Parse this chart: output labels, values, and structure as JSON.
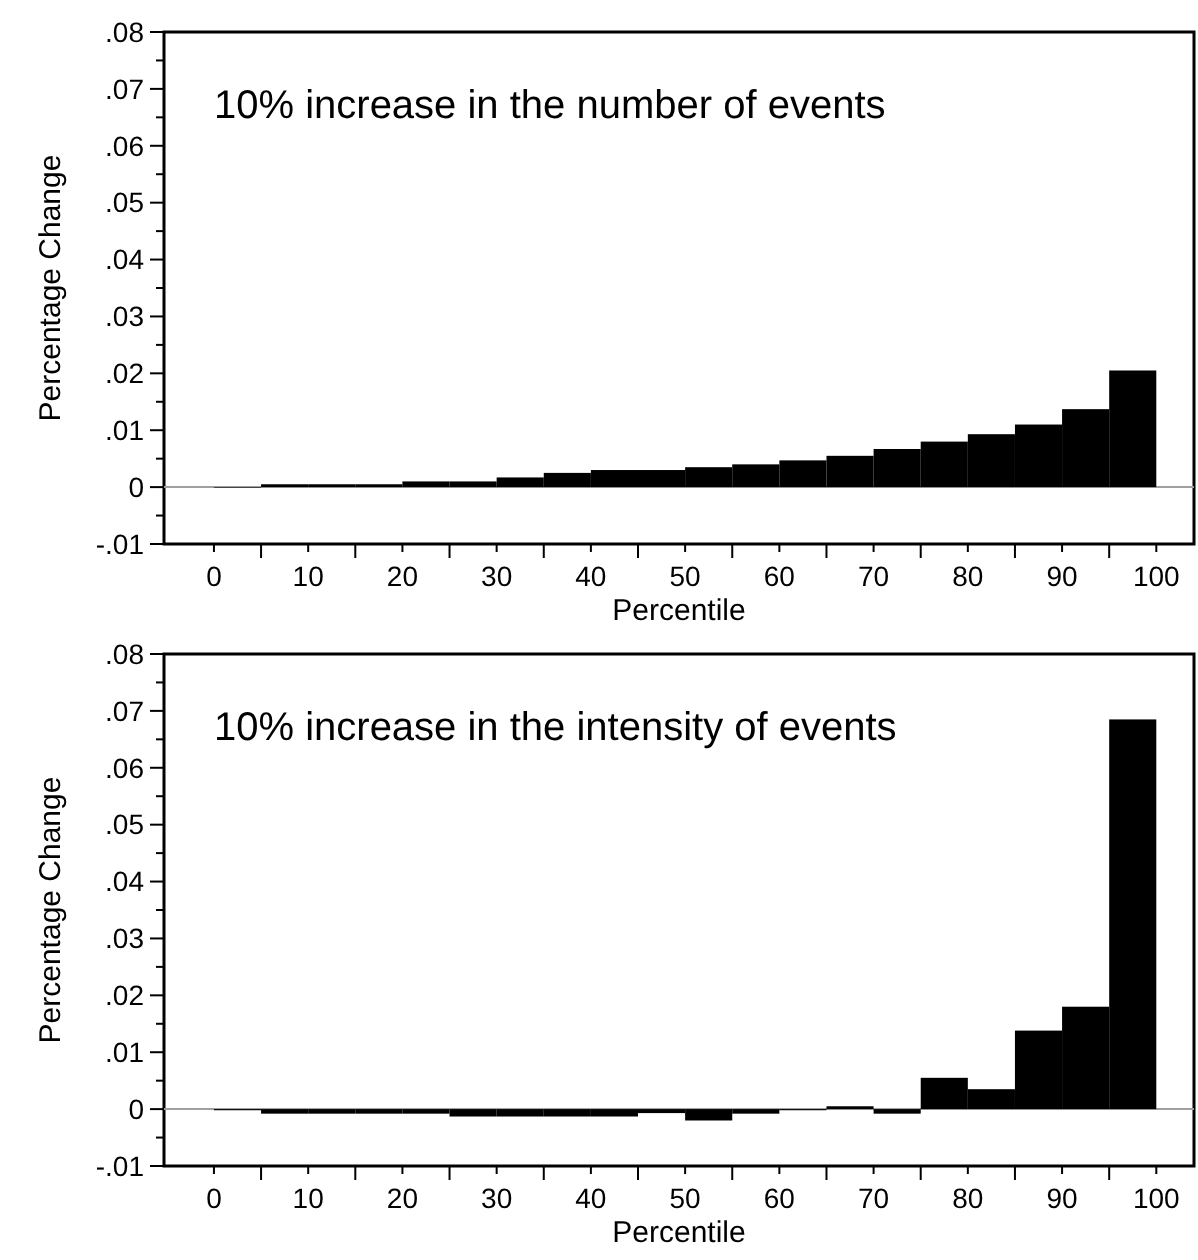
{
  "chart_data": [
    {
      "type": "histogram",
      "annotations": [
        "10% increase in the number of events"
      ],
      "xlabel": "Percentile",
      "ylabel": "Percentage Change",
      "color": "#000000",
      "bins": [
        0,
        5,
        10,
        15,
        20,
        25,
        30,
        35,
        40,
        45,
        50,
        55,
        60,
        65,
        70,
        75,
        80,
        85,
        90,
        95,
        100
      ],
      "values": [
        -0.0001,
        0.0005,
        0.0005,
        0.0005,
        0.001,
        0.001,
        0.0017,
        0.0025,
        0.003,
        0.003,
        0.0035,
        0.004,
        0.0047,
        0.0055,
        0.0067,
        0.008,
        0.0093,
        0.011,
        0.0137,
        0.0205
      ],
      "xlim": [
        -5.3,
        104
      ],
      "xticks": [
        0,
        {
          "value": 5,
          "label": null
        },
        10,
        {
          "value": 15,
          "label": null
        },
        20,
        {
          "value": 25,
          "label": null
        },
        30,
        {
          "value": 35,
          "label": null
        },
        40,
        {
          "value": 45,
          "label": null
        },
        50,
        {
          "value": 55,
          "label": null
        },
        60,
        {
          "value": 65,
          "label": null
        },
        70,
        {
          "value": 75,
          "label": null
        },
        80,
        {
          "value": 85,
          "label": null
        },
        90,
        {
          "value": 95,
          "label": null
        },
        100
      ],
      "ylim": [
        -0.01,
        0.08
      ],
      "yticks": [
        {
          "value": -0.01,
          "label": "-.01"
        },
        {
          "value": -0.005,
          "label": null
        },
        0,
        {
          "value": 0.005,
          "label": null
        },
        {
          "value": 0.01,
          "label": ".01"
        },
        {
          "value": 0.015,
          "label": null
        },
        {
          "value": 0.02,
          "label": ".02"
        },
        {
          "value": 0.025,
          "label": null
        },
        {
          "value": 0.03,
          "label": ".03"
        },
        {
          "value": 0.035,
          "label": null
        },
        {
          "value": 0.04,
          "label": ".04"
        },
        {
          "value": 0.045,
          "label": null
        },
        {
          "value": 0.05,
          "label": ".05"
        },
        {
          "value": 0.055,
          "label": null
        },
        {
          "value": 0.06,
          "label": ".06"
        },
        {
          "value": 0.065,
          "label": null
        },
        {
          "value": 0.07,
          "label": ".07"
        },
        {
          "value": 0.075,
          "label": null
        },
        {
          "value": 0.08,
          "label": ".08"
        }
      ],
      "ref_lines": [
        {
          "axis": "y",
          "value": 0,
          "color": "#a0a0a0"
        }
      ]
    },
    {
      "type": "histogram",
      "annotations": [
        "10% increase in the intensity of events"
      ],
      "xlabel": "Percentile",
      "ylabel": "Percentage Change",
      "color": "#000000",
      "bins": [
        0,
        5,
        10,
        15,
        20,
        25,
        30,
        35,
        40,
        45,
        50,
        55,
        60,
        65,
        70,
        75,
        80,
        85,
        90,
        95,
        100
      ],
      "values": [
        -0.0002,
        -0.0008,
        -0.0008,
        -0.0008,
        -0.0008,
        -0.0013,
        -0.0013,
        -0.0013,
        -0.0013,
        -0.0007,
        -0.002,
        -0.0008,
        -0.0002,
        0.0005,
        -0.0008,
        0.0055,
        0.0035,
        0.0138,
        0.018,
        0.0685
      ],
      "xlim": [
        -5.3,
        104
      ],
      "xticks": [
        0,
        {
          "value": 5,
          "label": null
        },
        10,
        {
          "value": 15,
          "label": null
        },
        20,
        {
          "value": 25,
          "label": null
        },
        30,
        {
          "value": 35,
          "label": null
        },
        40,
        {
          "value": 45,
          "label": null
        },
        50,
        {
          "value": 55,
          "label": null
        },
        60,
        {
          "value": 65,
          "label": null
        },
        70,
        {
          "value": 75,
          "label": null
        },
        80,
        {
          "value": 85,
          "label": null
        },
        90,
        {
          "value": 95,
          "label": null
        },
        100
      ],
      "ylim": [
        -0.01,
        0.08
      ],
      "yticks": [
        {
          "value": -0.01,
          "label": "-.01"
        },
        {
          "value": -0.005,
          "label": null
        },
        0,
        {
          "value": 0.005,
          "label": null
        },
        {
          "value": 0.01,
          "label": ".01"
        },
        {
          "value": 0.015,
          "label": null
        },
        {
          "value": 0.02,
          "label": ".02"
        },
        {
          "value": 0.025,
          "label": null
        },
        {
          "value": 0.03,
          "label": ".03"
        },
        {
          "value": 0.035,
          "label": null
        },
        {
          "value": 0.04,
          "label": ".04"
        },
        {
          "value": 0.045,
          "label": null
        },
        {
          "value": 0.05,
          "label": ".05"
        },
        {
          "value": 0.055,
          "label": null
        },
        {
          "value": 0.06,
          "label": ".06"
        },
        {
          "value": 0.065,
          "label": null
        },
        {
          "value": 0.07,
          "label": ".07"
        },
        {
          "value": 0.075,
          "label": null
        },
        {
          "value": 0.08,
          "label": ".08"
        }
      ],
      "ref_lines": [
        {
          "axis": "y",
          "value": 0,
          "color": "#a0a0a0"
        }
      ]
    }
  ]
}
